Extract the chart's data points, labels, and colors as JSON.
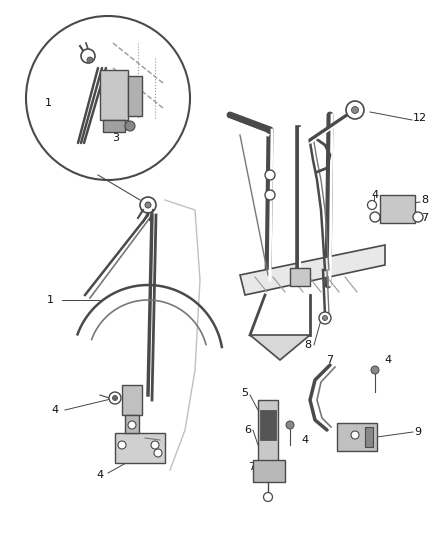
{
  "bg_color": "#ffffff",
  "lc": "#4a4a4a",
  "lc_light": "#999999",
  "lc_mid": "#777777",
  "fig_width": 4.38,
  "fig_height": 5.33,
  "dpi": 100
}
